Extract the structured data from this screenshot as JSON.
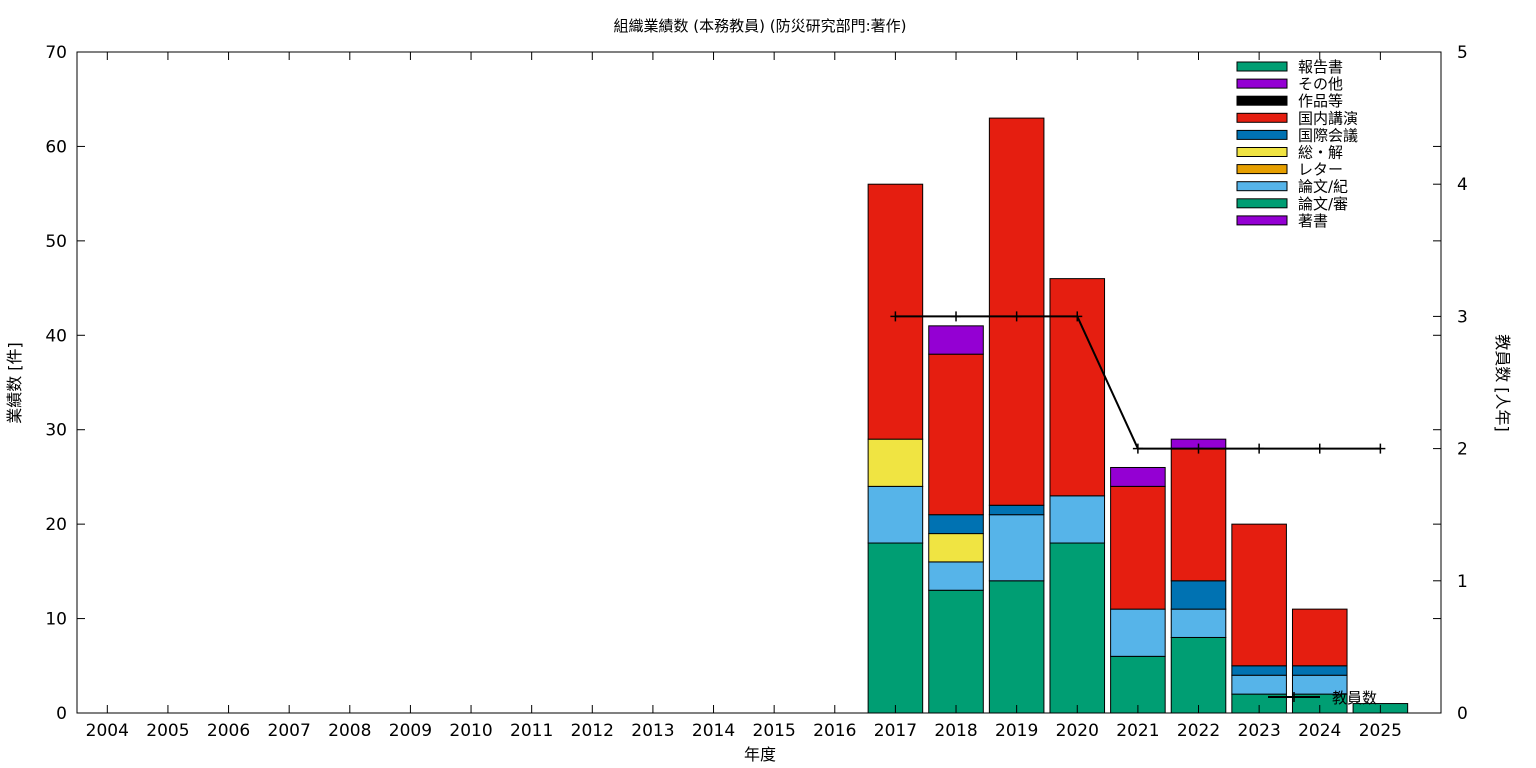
{
  "chart_data": {
    "type": "bar",
    "title": "組織業績数 (本務教員) (防災研究部門:著作)",
    "xlabel": "年度",
    "ylabel": "業績数 [件]",
    "y2label": "教員数 [人年]",
    "ylim": [
      0,
      70
    ],
    "y2lim": [
      0,
      5
    ],
    "yticks": [
      "0",
      "10",
      "20",
      "30",
      "40",
      "50",
      "60",
      "70"
    ],
    "y2ticks": [
      "0",
      "1",
      "2",
      "3",
      "4",
      "5"
    ],
    "categories": [
      "2004",
      "2005",
      "2006",
      "2007",
      "2008",
      "2009",
      "2010",
      "2011",
      "2012",
      "2013",
      "2014",
      "2015",
      "2016",
      "2017",
      "2018",
      "2019",
      "2020",
      "2021",
      "2022",
      "2023",
      "2024",
      "2025"
    ],
    "stacked": true,
    "grid": false,
    "legend_position": "top-right",
    "series": [
      {
        "name": "論文/審",
        "color": "#009e73",
        "values": [
          0,
          0,
          0,
          0,
          0,
          0,
          0,
          0,
          0,
          0,
          0,
          0,
          0,
          18,
          13,
          14,
          18,
          6,
          8,
          2,
          2,
          0
        ]
      },
      {
        "name": "論文/紀",
        "color": "#56b4e9",
        "values": [
          0,
          0,
          0,
          0,
          0,
          0,
          0,
          0,
          0,
          0,
          0,
          0,
          0,
          6,
          3,
          7,
          5,
          5,
          3,
          2,
          2,
          0
        ]
      },
      {
        "name": "総・解",
        "color": "#f0e442",
        "values": [
          0,
          0,
          0,
          0,
          0,
          0,
          0,
          0,
          0,
          0,
          0,
          0,
          0,
          5,
          3,
          0,
          0,
          0,
          0,
          0,
          0,
          0
        ]
      },
      {
        "name": "国際会議",
        "color": "#0072b2",
        "values": [
          0,
          0,
          0,
          0,
          0,
          0,
          0,
          0,
          0,
          0,
          0,
          0,
          0,
          0,
          2,
          1,
          0,
          0,
          3,
          1,
          1,
          0
        ]
      },
      {
        "name": "国内講演",
        "color": "#e51e10",
        "values": [
          0,
          0,
          0,
          0,
          0,
          0,
          0,
          0,
          0,
          0,
          0,
          0,
          0,
          27,
          17,
          41,
          23,
          13,
          14,
          15,
          6,
          0
        ]
      },
      {
        "name": "その他",
        "color": "#9400d3",
        "values": [
          0,
          0,
          0,
          0,
          0,
          0,
          0,
          0,
          0,
          0,
          0,
          0,
          0,
          0,
          3,
          0,
          0,
          2,
          1,
          0,
          0,
          0
        ]
      },
      {
        "name": "報告書",
        "color": "#009e73",
        "values": [
          0,
          0,
          0,
          0,
          0,
          0,
          0,
          0,
          0,
          0,
          0,
          0,
          0,
          0,
          0,
          0,
          0,
          0,
          0,
          0,
          0,
          1
        ]
      }
    ],
    "legend_entries": [
      {
        "name": "報告書",
        "color": "#009e73"
      },
      {
        "name": "その他",
        "color": "#9400d3"
      },
      {
        "name": "作品等",
        "color": "#000000"
      },
      {
        "name": "国内講演",
        "color": "#e51e10"
      },
      {
        "name": "国際会議",
        "color": "#0072b2"
      },
      {
        "name": "総・解",
        "color": "#f0e442"
      },
      {
        "name": "レター",
        "color": "#e69f00"
      },
      {
        "name": "論文/紀",
        "color": "#56b4e9"
      },
      {
        "name": "論文/審",
        "color": "#009e73"
      },
      {
        "name": "著書",
        "color": "#9400d3"
      }
    ],
    "line_series": {
      "name": "教員数",
      "axis": "y2",
      "color": "#000000",
      "points": [
        {
          "x": "2017",
          "y": 3
        },
        {
          "x": "2018",
          "y": 3
        },
        {
          "x": "2019",
          "y": 3
        },
        {
          "x": "2020",
          "y": 3
        },
        {
          "x": "2021",
          "y": 2
        },
        {
          "x": "2022",
          "y": 2
        },
        {
          "x": "2023",
          "y": 2
        },
        {
          "x": "2024",
          "y": 2
        },
        {
          "x": "2025",
          "y": 2
        }
      ]
    }
  }
}
